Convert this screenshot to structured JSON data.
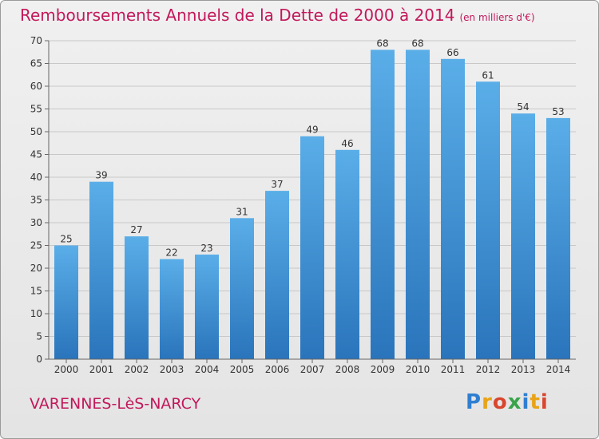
{
  "title": {
    "main": "Remboursements Annuels de la Dette de 2000 à 2014",
    "unit": "(en milliers d'€)"
  },
  "commune": "VARENNES-LèS-NARCY",
  "logo": {
    "text": "Proxiti",
    "colors": [
      "#2f7fd1",
      "#e8a317",
      "#d9462e",
      "#3aa34a"
    ]
  },
  "colors": {
    "title": "#c2185b",
    "bar_top": "#5aaee8",
    "bar_bottom": "#2a74bb",
    "grid": "#c8c8c8",
    "axis_text": "#333333"
  },
  "chart_data": {
    "type": "bar",
    "title": "Remboursements Annuels de la Dette de 2000 à 2014",
    "xlabel": "",
    "ylabel": "",
    "ylim": [
      0,
      70
    ],
    "yticks": [
      0,
      5,
      10,
      15,
      20,
      25,
      30,
      35,
      40,
      45,
      50,
      55,
      60,
      65,
      70
    ],
    "grid": true,
    "categories": [
      "2000",
      "2001",
      "2002",
      "2003",
      "2004",
      "2005",
      "2006",
      "2007",
      "2008",
      "2009",
      "2010",
      "2011",
      "2012",
      "2013",
      "2014"
    ],
    "values": [
      25,
      39,
      27,
      22,
      23,
      31,
      37,
      49,
      46,
      68,
      68,
      66,
      61,
      54,
      53
    ]
  }
}
